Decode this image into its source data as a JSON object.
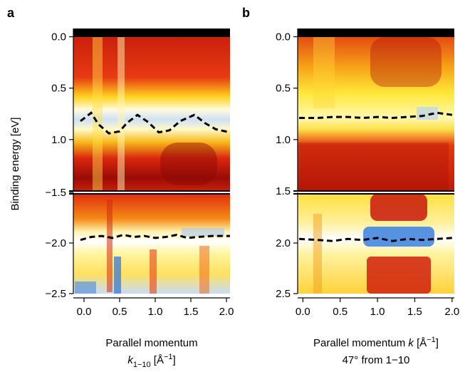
{
  "chart_data": [
    {
      "type": "heatmap",
      "label": "a",
      "ylabel": "Binding energy [eV]",
      "xlabel_lines": [
        [
          "Parallel momentum"
        ],
        [
          "k",
          "1−10",
          " [Å",
          "−1",
          "]"
        ]
      ],
      "xlim": [
        -0.15,
        2.05
      ],
      "xticks": [
        {
          "value": 0,
          "label": "0.0"
        },
        {
          "value": 0.5,
          "label": "0.5"
        },
        {
          "value": 1,
          "label": "1.0"
        },
        {
          "value": 1.5,
          "label": "1.5"
        },
        {
          "value": 2,
          "label": "2.0"
        }
      ],
      "segments": [
        {
          "ylim": [
            -0.08,
            1.5
          ],
          "yticks": [
            {
              "value": 0,
              "label": "0.0"
            },
            {
              "value": 0.5,
              "label": "0.5"
            },
            {
              "value": 1,
              "label": "1.0"
            }
          ],
          "series": [
            {
              "color": "#000000",
              "x": [
                -0.05,
                0.1,
                0.2,
                0.35,
                0.5,
                0.6,
                0.75,
                0.9,
                1.05,
                1.2,
                1.35,
                1.55,
                1.7,
                1.85,
                2.05
              ],
              "values": [
                0.82,
                0.74,
                0.85,
                0.94,
                0.92,
                0.84,
                0.76,
                0.83,
                0.93,
                0.91,
                0.82,
                0.76,
                0.84,
                0.9,
                0.93
              ]
            }
          ]
        },
        {
          "ylim": [
            -1.5,
            -2.5
          ],
          "yticks": [
            {
              "value": -1.5,
              "label": "−1.5"
            },
            {
              "value": -2,
              "label": "−2.0"
            },
            {
              "value": -2.5,
              "label": "−2.5"
            }
          ],
          "series": [
            {
              "color": "#000000",
              "x": [
                -0.05,
                0.1,
                0.25,
                0.4,
                0.55,
                0.7,
                0.85,
                1.0,
                1.15,
                1.3,
                1.45,
                1.6,
                1.8,
                2.05
              ],
              "values": [
                -1.97,
                -1.94,
                -1.93,
                -1.95,
                -1.92,
                -1.94,
                -1.93,
                -1.95,
                -1.94,
                -1.92,
                -1.95,
                -1.94,
                -1.93,
                -1.93
              ]
            }
          ]
        }
      ]
    },
    {
      "type": "heatmap",
      "label": "b",
      "xlabel_lines": [
        [
          "Parallel momentum ",
          "k",
          " [Å",
          "−1",
          "]"
        ],
        [
          "47° from 1−10"
        ]
      ],
      "xlim": [
        -0.07,
        2.03
      ],
      "xticks": [
        {
          "value": 0,
          "label": "0.0"
        },
        {
          "value": 0.5,
          "label": "0.5"
        },
        {
          "value": 1,
          "label": "1.0"
        },
        {
          "value": 1.5,
          "label": "1.5"
        },
        {
          "value": 2,
          "label": "2.0"
        }
      ],
      "segments": [
        {
          "ylim": [
            -0.08,
            1.5
          ],
          "yticks": [
            {
              "value": 0,
              "label": "0.0"
            },
            {
              "value": 0.5,
              "label": "0.5"
            },
            {
              "value": 1,
              "label": "1.0"
            },
            {
              "value": 1.5,
              "label": "1.5"
            }
          ],
          "series": [
            {
              "color": "#000000",
              "x": [
                -0.05,
                0.2,
                0.4,
                0.6,
                0.8,
                1.0,
                1.2,
                1.4,
                1.6,
                1.8,
                2.0
              ],
              "values": [
                0.79,
                0.79,
                0.78,
                0.78,
                0.79,
                0.78,
                0.79,
                0.78,
                0.77,
                0.74,
                0.76
              ]
            }
          ]
        },
        {
          "ylim": [
            1.5,
            2.5
          ],
          "yticks": [
            {
              "value": 2,
              "label": "2.0"
            },
            {
              "value": 2.5,
              "label": "2.5"
            }
          ],
          "series": [
            {
              "color": "#000000",
              "x": [
                -0.05,
                0.2,
                0.4,
                0.6,
                0.8,
                1.0,
                1.2,
                1.4,
                1.6,
                1.8,
                2.0
              ],
              "values": [
                1.96,
                1.97,
                1.98,
                1.96,
                1.97,
                1.95,
                1.98,
                1.96,
                1.97,
                1.96,
                1.95
              ]
            }
          ]
        }
      ]
    }
  ]
}
